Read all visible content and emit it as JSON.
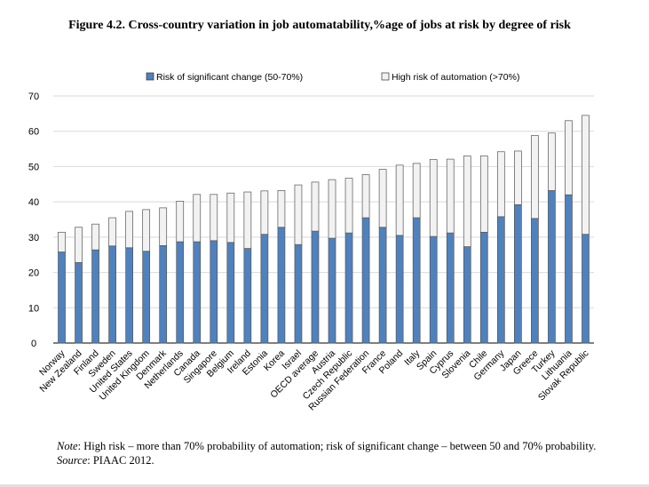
{
  "figure": {
    "title": "Figure 4.2. Cross-country variation in job automatability,%age of jobs at risk by degree of risk"
  },
  "notes": {
    "note_label": "Note",
    "note_text": ": High risk – more than 70% probability of automation; risk of significant change – between 50 and 70% probability.",
    "source_label": "Source",
    "source_text": ": PIAAC 2012."
  },
  "colors": {
    "series_significant": "#4f81bd",
    "series_high": "#f2f2f2",
    "bar_outline": "#555555",
    "plot_bg": "#ffffff",
    "grid": "#d9d9d9"
  },
  "chart_data": {
    "type": "bar",
    "stacked": true,
    "title": "Figure 4.2. Cross-country variation in job automatability,%age of jobs at risk by degree of risk",
    "xlabel": "",
    "ylabel": "",
    "ylim": [
      0,
      70
    ],
    "yticks": [
      0,
      10,
      20,
      30,
      40,
      50,
      60,
      70
    ],
    "grid": true,
    "legend_position": "top",
    "categories": [
      "Norway",
      "New Zealand",
      "Finland",
      "Sweden",
      "United States",
      "United Kingdom",
      "Denmark",
      "Netherlands",
      "Canada",
      "Singapore",
      "Belgium",
      "Ireland",
      "Estonia",
      "Korea",
      "Israel",
      "OECD average",
      "Austria",
      "Czech Republic",
      "Russian Federation",
      "France",
      "Poland",
      "Italy",
      "Spain",
      "Cyprus",
      "Slovenia",
      "Chile",
      "Germany",
      "Japan",
      "Greece",
      "Turkey",
      "Lithuania",
      "Slovak Republic"
    ],
    "series": [
      {
        "name": "Risk of significant change (50-70%)",
        "values": [
          25.8,
          22.8,
          26.4,
          27.5,
          27.0,
          26.0,
          27.6,
          28.7,
          28.7,
          29.0,
          28.5,
          26.8,
          30.8,
          32.8,
          27.9,
          31.7,
          29.7,
          31.2,
          35.5,
          32.8,
          30.5,
          35.5,
          30.2,
          31.2,
          27.3,
          31.4,
          35.8,
          39.2,
          35.3,
          43.2,
          42.0,
          30.8
        ]
      },
      {
        "name": "High risk of automation (>70%)",
        "values": [
          5.6,
          10.0,
          7.3,
          8.0,
          10.3,
          11.8,
          10.7,
          11.5,
          13.4,
          13.1,
          14.0,
          16.0,
          12.3,
          10.4,
          16.9,
          13.9,
          16.6,
          15.5,
          12.2,
          16.4,
          19.9,
          15.4,
          21.8,
          20.9,
          25.7,
          21.6,
          18.4,
          15.2,
          23.5,
          16.3,
          21.0,
          33.7
        ]
      }
    ]
  }
}
